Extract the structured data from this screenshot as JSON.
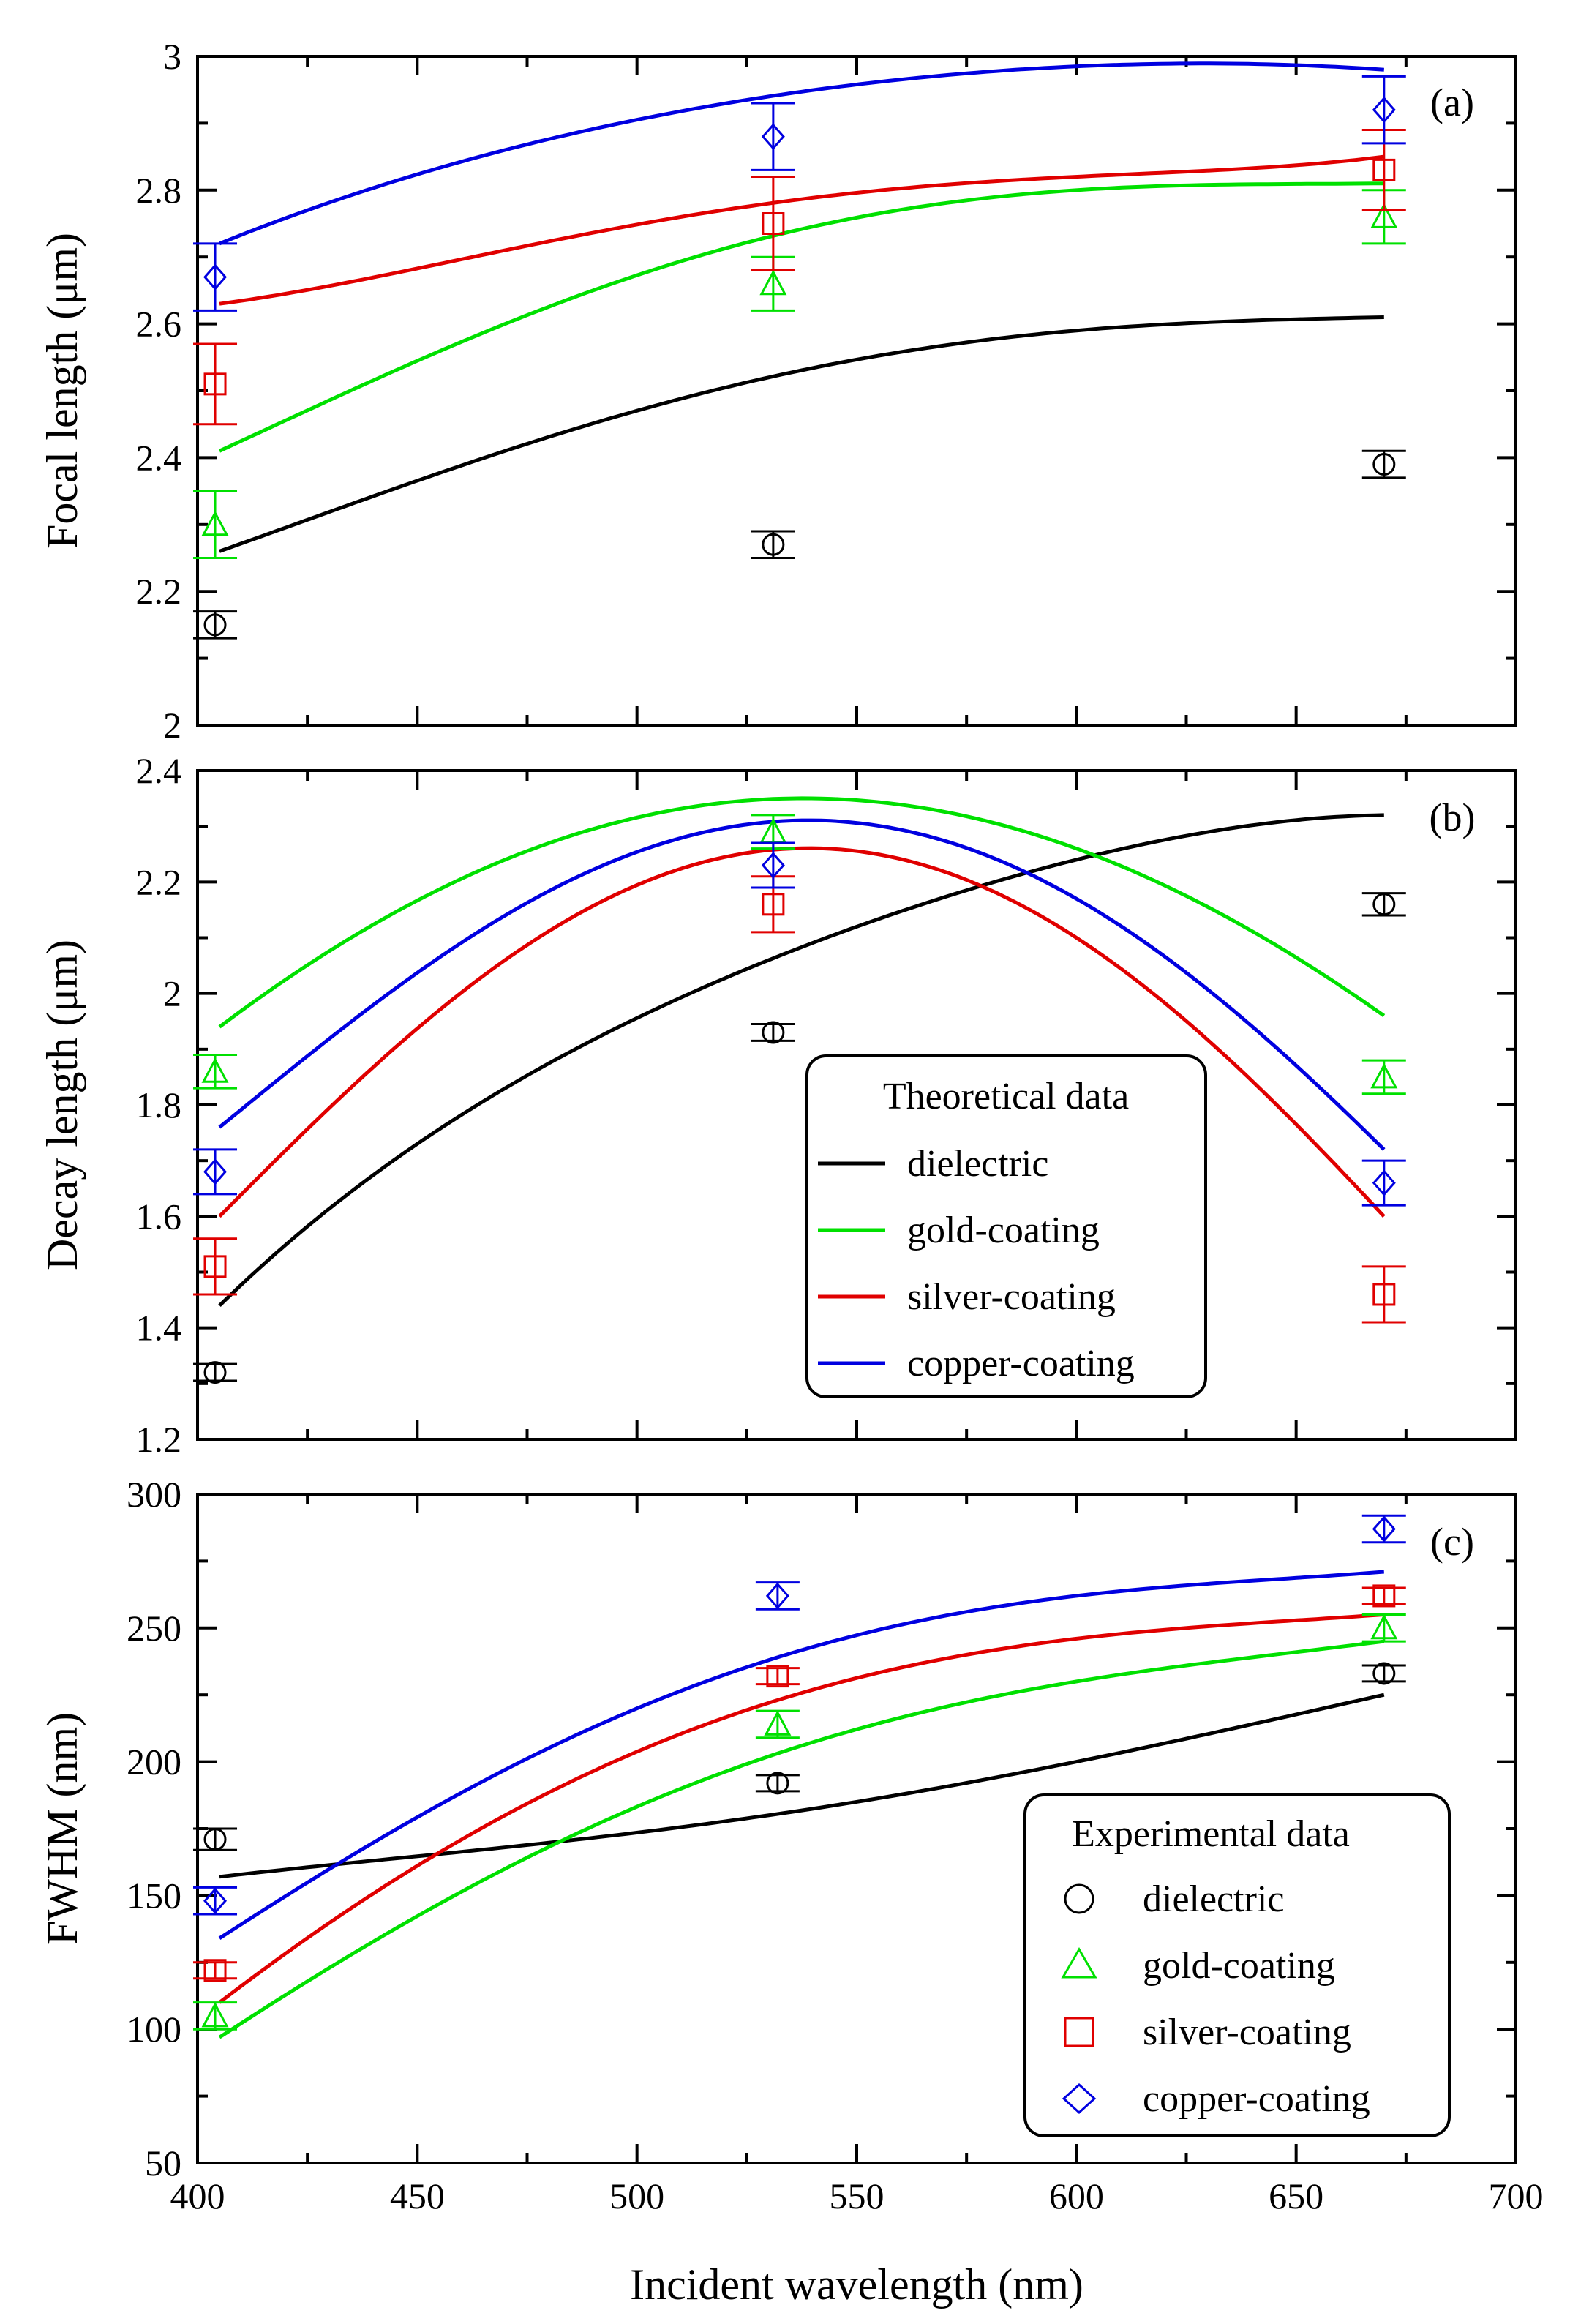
{
  "chart_data": [
    {
      "id": "a",
      "type": "line",
      "panel_label": "(a)",
      "ylabel": "Focal length (μm)",
      "ylim": [
        2,
        3
      ],
      "yticks": [
        2,
        2.2,
        2.4,
        2.6,
        2.8,
        3
      ],
      "ytick_labels": [
        "2",
        "2.2",
        "2.4",
        "2.6",
        "2.8",
        "3"
      ],
      "xlim": [
        400,
        700
      ],
      "series": [
        {
          "name": "dielectric",
          "color": "#000000",
          "marker": "circle",
          "curve_x": [
            405,
            470,
            530,
            600,
            670
          ],
          "curve_y": [
            2.26,
            2.41,
            2.52,
            2.59,
            2.61
          ],
          "points": [
            {
              "x": 404,
              "y": 2.15,
              "err": 0.02
            },
            {
              "x": 531,
              "y": 2.27,
              "err": 0.02
            },
            {
              "x": 670,
              "y": 2.39,
              "err": 0.02
            }
          ]
        },
        {
          "name": "gold-coating",
          "color": "#00e000",
          "marker": "triangle",
          "curve_x": [
            405,
            470,
            530,
            600,
            670
          ],
          "curve_y": [
            2.41,
            2.6,
            2.73,
            2.8,
            2.81
          ],
          "points": [
            {
              "x": 404,
              "y": 2.3,
              "err": 0.05
            },
            {
              "x": 531,
              "y": 2.66,
              "err": 0.04
            },
            {
              "x": 670,
              "y": 2.76,
              "err": 0.04
            }
          ]
        },
        {
          "name": "silver-coating",
          "color": "#e00000",
          "marker": "square",
          "curve_x": [
            405,
            470,
            530,
            600,
            670
          ],
          "curve_y": [
            2.63,
            2.71,
            2.78,
            2.82,
            2.85
          ],
          "points": [
            {
              "x": 404,
              "y": 2.51,
              "err": 0.06
            },
            {
              "x": 531,
              "y": 2.75,
              "err": 0.07
            },
            {
              "x": 670,
              "y": 2.83,
              "err": 0.06
            }
          ]
        },
        {
          "name": "copper-coating",
          "color": "#0000e0",
          "marker": "diamond",
          "curve_x": [
            405,
            470,
            530,
            600,
            670
          ],
          "curve_y": [
            2.72,
            2.86,
            2.94,
            2.985,
            2.98
          ],
          "points": [
            {
              "x": 404,
              "y": 2.67,
              "err": 0.05
            },
            {
              "x": 531,
              "y": 2.88,
              "err": 0.05
            },
            {
              "x": 670,
              "y": 2.92,
              "err": 0.05
            }
          ]
        }
      ]
    },
    {
      "id": "b",
      "type": "line",
      "panel_label": "(b)",
      "ylabel": "Decay length (μm)",
      "ylim": [
        1.2,
        2.4
      ],
      "yticks": [
        1.2,
        1.4,
        1.6,
        1.8,
        2,
        2.2,
        2.4
      ],
      "ytick_labels": [
        "1.2",
        "1.4",
        "1.6",
        "1.8",
        "2",
        "2.2",
        "2.4"
      ],
      "xlim": [
        400,
        700
      ],
      "legend": {
        "title": "Theoretical data",
        "placement": "center-right"
      },
      "series": [
        {
          "name": "dielectric",
          "color": "#000000",
          "marker": "circle",
          "curve_x": [
            405,
            470,
            530,
            600,
            670
          ],
          "curve_y": [
            1.44,
            1.83,
            2.06,
            2.24,
            2.32
          ],
          "points": [
            {
              "x": 404,
              "y": 1.32,
              "err": 0.015
            },
            {
              "x": 531,
              "y": 1.93,
              "err": 0.015
            },
            {
              "x": 670,
              "y": 2.16,
              "err": 0.02
            }
          ]
        },
        {
          "name": "gold-coating",
          "color": "#00e000",
          "marker": "triangle",
          "curve_x": [
            405,
            470,
            535,
            600,
            670
          ],
          "curve_y": [
            1.94,
            2.24,
            2.35,
            2.26,
            1.96
          ],
          "points": [
            {
              "x": 404,
              "y": 1.86,
              "err": 0.03
            },
            {
              "x": 531,
              "y": 2.29,
              "err": 0.03
            },
            {
              "x": 670,
              "y": 1.85,
              "err": 0.03
            }
          ]
        },
        {
          "name": "silver-coating",
          "color": "#e00000",
          "marker": "square",
          "curve_x": [
            405,
            470,
            535,
            600,
            670
          ],
          "curve_y": [
            1.6,
            2.06,
            2.26,
            2.1,
            1.6
          ],
          "points": [
            {
              "x": 404,
              "y": 1.51,
              "err": 0.05
            },
            {
              "x": 531,
              "y": 2.16,
              "err": 0.05
            },
            {
              "x": 670,
              "y": 1.46,
              "err": 0.05
            }
          ]
        },
        {
          "name": "copper-coating",
          "color": "#0000e0",
          "marker": "diamond",
          "curve_x": [
            405,
            470,
            535,
            600,
            670
          ],
          "curve_y": [
            1.76,
            2.14,
            2.31,
            2.17,
            1.72
          ],
          "points": [
            {
              "x": 404,
              "y": 1.68,
              "err": 0.04
            },
            {
              "x": 531,
              "y": 2.23,
              "err": 0.04
            },
            {
              "x": 670,
              "y": 1.66,
              "err": 0.04
            }
          ]
        }
      ]
    },
    {
      "id": "c",
      "type": "line",
      "panel_label": "(c)",
      "ylabel": "FWHM (nm)",
      "xlabel": "Incident wavelength (nm)",
      "ylim": [
        50,
        300
      ],
      "yticks": [
        50,
        100,
        150,
        200,
        250,
        300
      ],
      "ytick_labels": [
        "50",
        "100",
        "150",
        "200",
        "250",
        "300"
      ],
      "xlim": [
        400,
        700
      ],
      "xticks": [
        400,
        450,
        500,
        550,
        600,
        650,
        700
      ],
      "xtick_labels": [
        "400",
        "450",
        "500",
        "550",
        "600",
        "650",
        "700"
      ],
      "legend": {
        "title": "Experimental data",
        "placement": "bottom-right"
      },
      "series": [
        {
          "name": "dielectric",
          "color": "#000000",
          "marker": "circle",
          "curve_x": [
            405,
            470,
            530,
            600,
            670
          ],
          "curve_y": [
            157,
            168,
            180,
            200,
            225
          ],
          "points": [
            {
              "x": 404,
              "y": 171,
              "err": 4
            },
            {
              "x": 532,
              "y": 192,
              "err": 3
            },
            {
              "x": 670,
              "y": 233,
              "err": 3
            }
          ]
        },
        {
          "name": "gold-coating",
          "color": "#00e000",
          "marker": "triangle",
          "curve_x": [
            405,
            470,
            530,
            600,
            670
          ],
          "curve_y": [
            97,
            160,
            202,
            230,
            245
          ],
          "points": [
            {
              "x": 404,
              "y": 105,
              "err": 5
            },
            {
              "x": 532,
              "y": 214,
              "err": 5
            },
            {
              "x": 670,
              "y": 250,
              "err": 5
            }
          ]
        },
        {
          "name": "silver-coating",
          "color": "#e00000",
          "marker": "square",
          "curve_x": [
            405,
            470,
            530,
            600,
            670
          ],
          "curve_y": [
            110,
            180,
            222,
            246,
            255
          ],
          "points": [
            {
              "x": 404,
              "y": 122,
              "err": 3
            },
            {
              "x": 532,
              "y": 232,
              "err": 3
            },
            {
              "x": 670,
              "y": 262,
              "err": 3
            }
          ]
        },
        {
          "name": "copper-coating",
          "color": "#0000e0",
          "marker": "diamond",
          "curve_x": [
            405,
            470,
            530,
            600,
            670
          ],
          "curve_y": [
            134,
            197,
            238,
            262,
            271
          ],
          "points": [
            {
              "x": 404,
              "y": 148,
              "err": 5
            },
            {
              "x": 532,
              "y": 262,
              "err": 5
            },
            {
              "x": 670,
              "y": 287,
              "err": 5
            }
          ]
        }
      ]
    }
  ]
}
